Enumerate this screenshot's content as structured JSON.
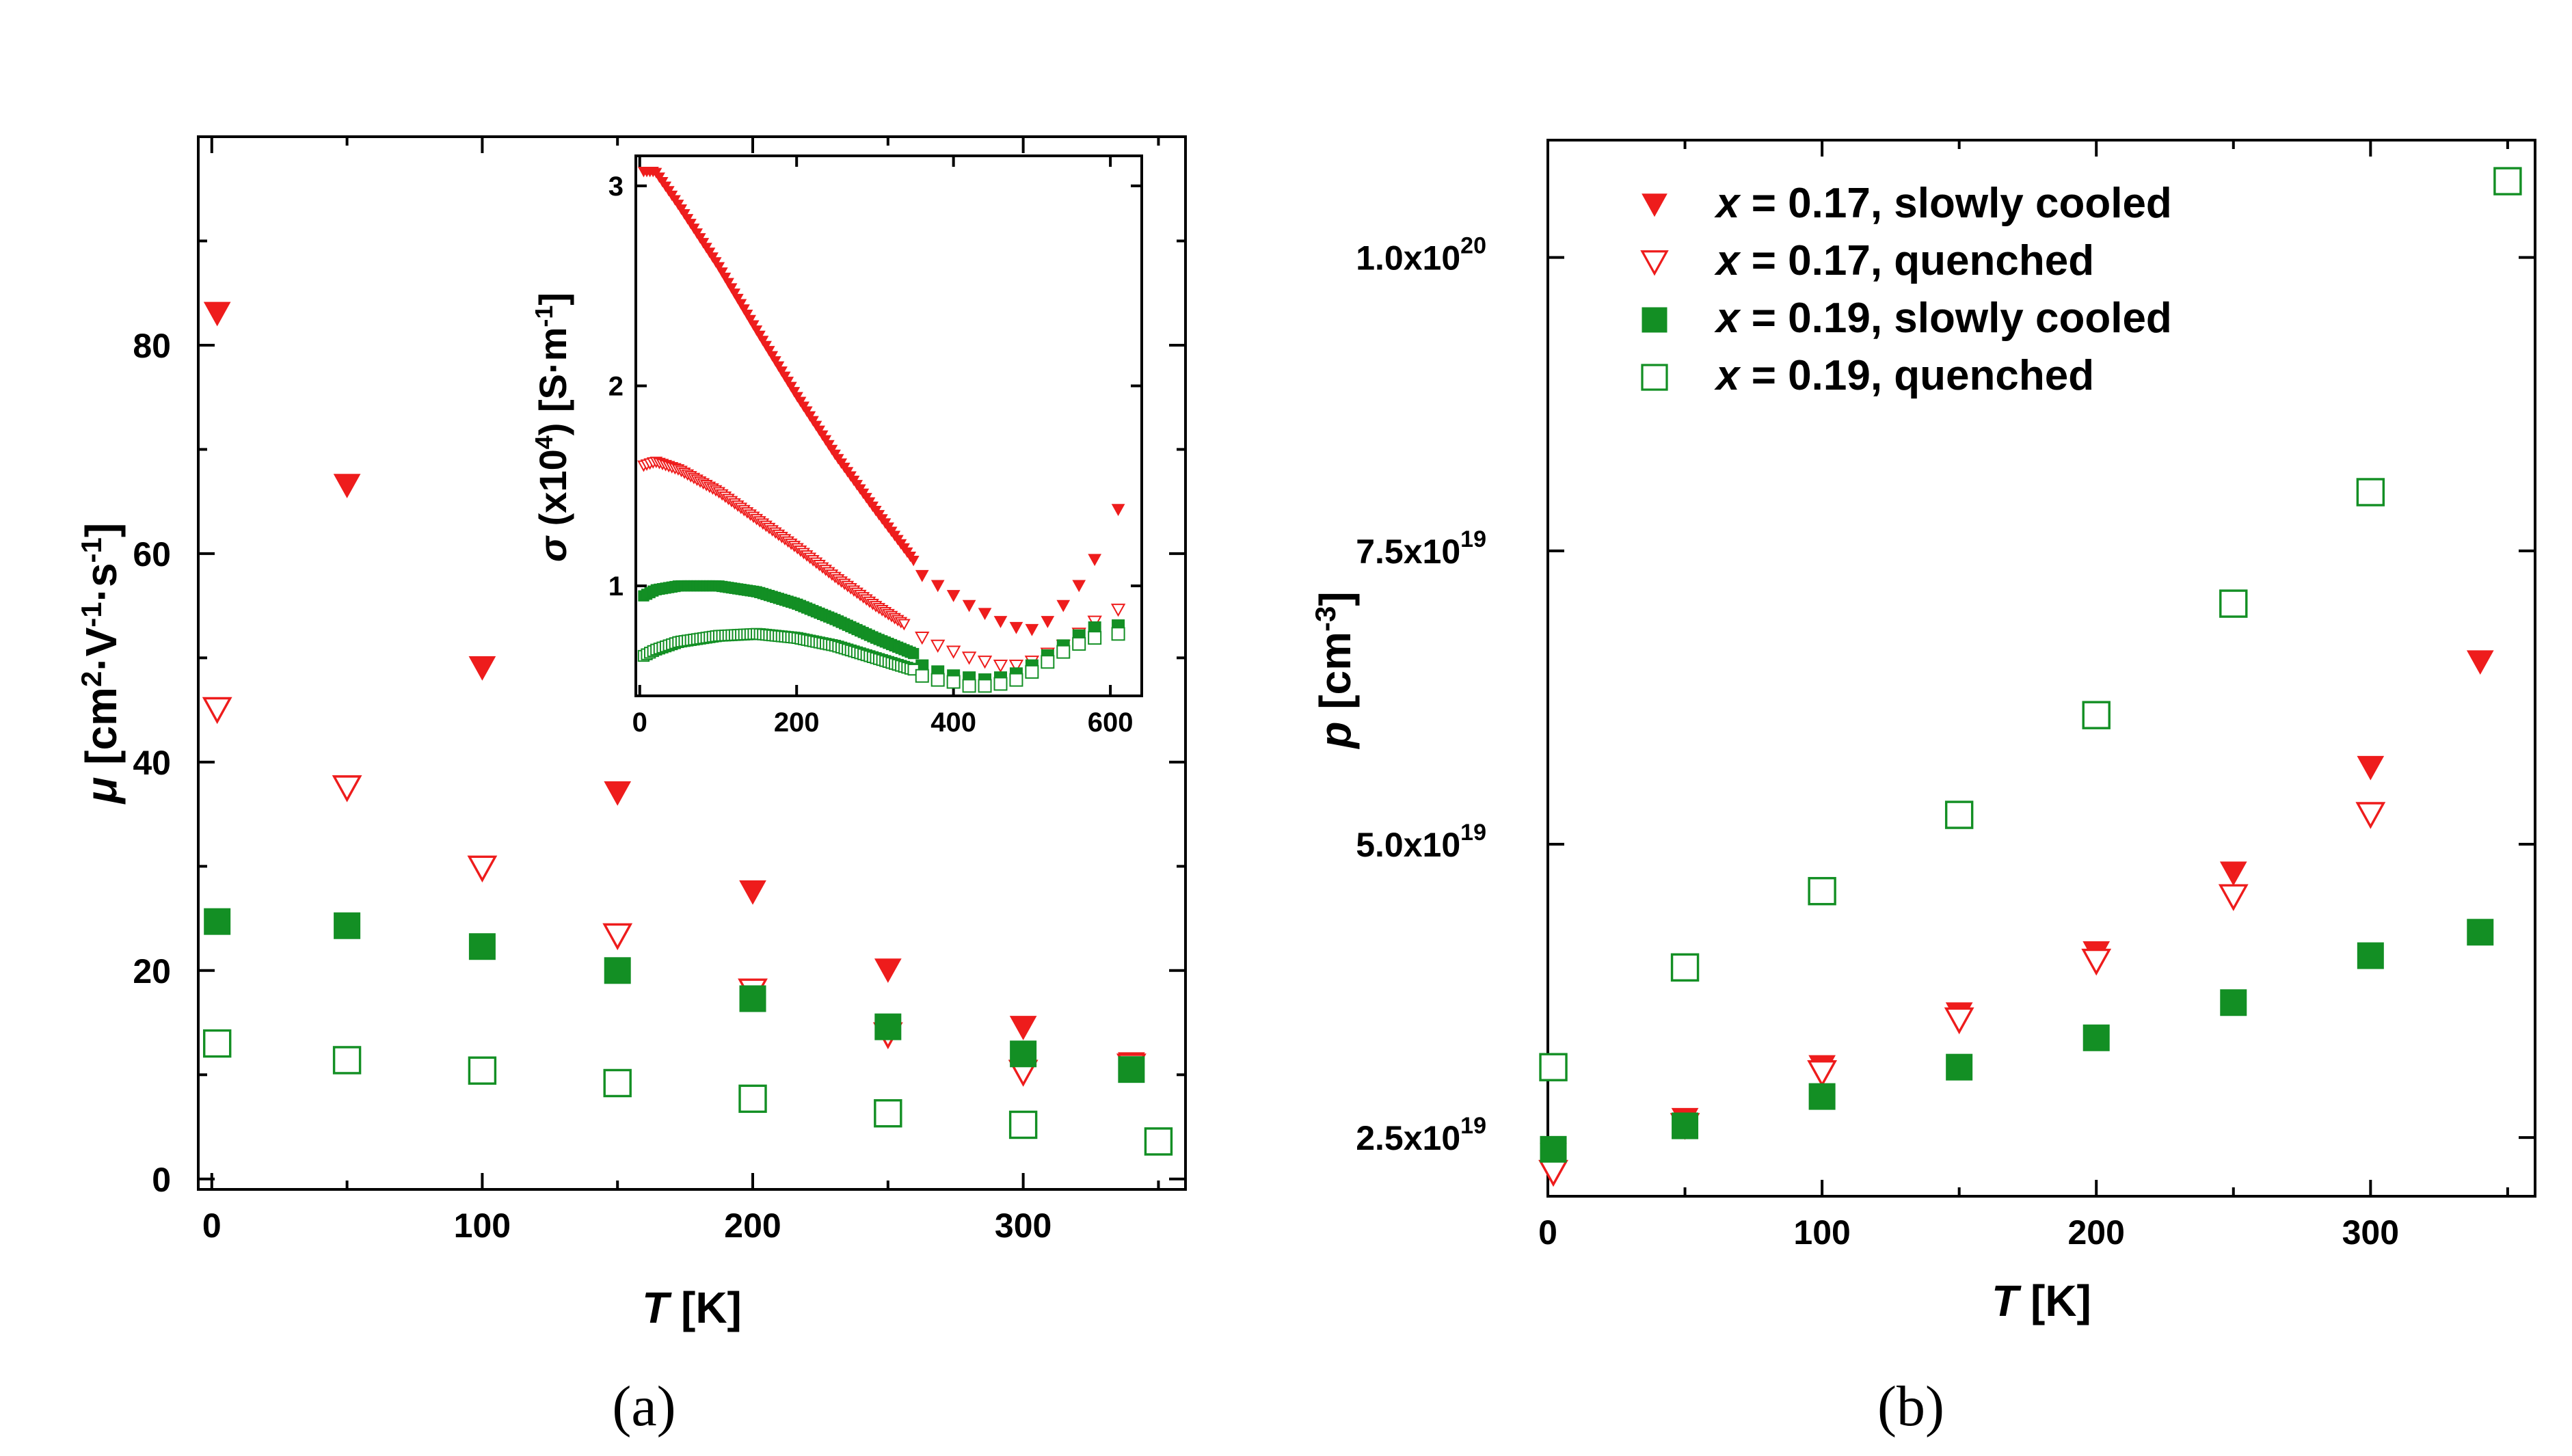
{
  "chart_data": [
    {
      "id": "a-main",
      "type": "scatter",
      "panel_label": "(a)",
      "xlabel": "T [K]",
      "ylabel": "μ [cm²·V⁻¹·s⁻¹]",
      "xlim": [
        -5,
        360
      ],
      "ylim": [
        -1,
        100
      ],
      "xticks": [
        0,
        100,
        200,
        300
      ],
      "xminor": [
        50,
        150,
        250,
        350
      ],
      "yticks": [
        0,
        20,
        40,
        60,
        80
      ],
      "yminor": [
        10,
        30,
        50,
        70,
        90
      ],
      "series": [
        {
          "name": "x = 0.17, slowly cooled",
          "marker": "triangle-down",
          "filled": true,
          "color": "#ee1c1c",
          "x": [
            2,
            50,
            100,
            150,
            200,
            250,
            300,
            340
          ],
          "y": [
            83,
            66.5,
            49,
            37,
            27.5,
            20,
            14.5,
            11
          ]
        },
        {
          "name": "x = 0.17, quenched",
          "marker": "triangle-down",
          "filled": false,
          "color": "#ee1c1c",
          "x": [
            2,
            50,
            100,
            150,
            200,
            250,
            300,
            340
          ],
          "y": [
            45,
            37.5,
            29.8,
            23.3,
            18,
            13.8,
            10.2,
            10.8
          ]
        },
        {
          "name": "x = 0.19, slowly cooled",
          "marker": "square",
          "filled": true,
          "color": "#138f24",
          "x": [
            2,
            50,
            100,
            150,
            200,
            250,
            300,
            340
          ],
          "y": [
            24.7,
            24.3,
            22.3,
            20,
            17.3,
            14.6,
            12,
            10.5
          ]
        },
        {
          "name": "x = 0.19, quenched",
          "marker": "square",
          "filled": false,
          "color": "#138f24",
          "x": [
            2,
            50,
            100,
            150,
            200,
            250,
            300,
            350
          ],
          "y": [
            13,
            11.4,
            10.4,
            9.2,
            7.7,
            6.3,
            5.2,
            3.6
          ]
        }
      ]
    },
    {
      "id": "a-inset",
      "type": "scatter",
      "xlabel": "",
      "ylabel": "σ (x10⁴) [S·m⁻¹]",
      "xlim": [
        -5,
        640
      ],
      "ylim": [
        0.45,
        3.15
      ],
      "xticks": [
        0,
        200,
        400,
        600
      ],
      "yticks": [
        1,
        2,
        3
      ],
      "series": [
        {
          "name": "x = 0.17, slowly cooled (dense)",
          "marker": "triangle-down",
          "filled": true,
          "color": "#ee1c1c",
          "curve": {
            "x": [
              5,
              20,
              50,
              100,
              150,
              200,
              250,
              300,
              350
            ],
            "y": [
              3.07,
              3.07,
              2.9,
              2.6,
              2.27,
              1.95,
              1.65,
              1.38,
              1.12
            ]
          }
        },
        {
          "name": "x = 0.17, slowly cooled (high T)",
          "marker": "triangle-down",
          "filled": true,
          "color": "#ee1c1c",
          "x": [
            360,
            380,
            400,
            420,
            440,
            460,
            480,
            500,
            520,
            540,
            560,
            580,
            610
          ],
          "y": [
            1.05,
            1.0,
            0.95,
            0.9,
            0.86,
            0.82,
            0.79,
            0.78,
            0.82,
            0.9,
            1.0,
            1.13,
            1.38
          ]
        },
        {
          "name": "x = 0.17, quenched (dense)",
          "marker": "triangle-down",
          "filled": false,
          "color": "#ee1c1c",
          "curve": {
            "x": [
              5,
              20,
              50,
              100,
              150,
              200,
              250,
              300,
              340
            ],
            "y": [
              1.6,
              1.62,
              1.58,
              1.47,
              1.33,
              1.19,
              1.04,
              0.9,
              0.8
            ]
          }
        },
        {
          "name": "x = 0.17, quenched (high T)",
          "marker": "triangle-down",
          "filled": false,
          "color": "#ee1c1c",
          "x": [
            360,
            380,
            400,
            420,
            440,
            460,
            480,
            500,
            520,
            540,
            560,
            580,
            610
          ],
          "y": [
            0.74,
            0.7,
            0.67,
            0.64,
            0.62,
            0.6,
            0.6,
            0.62,
            0.66,
            0.7,
            0.76,
            0.82,
            0.88
          ]
        },
        {
          "name": "x = 0.19, slowly cooled (dense)",
          "marker": "square",
          "filled": true,
          "color": "#138f24",
          "curve": {
            "x": [
              5,
              20,
              50,
              100,
              150,
              200,
              250,
              300,
              350
            ],
            "y": [
              0.95,
              0.98,
              1.0,
              1.0,
              0.97,
              0.91,
              0.83,
              0.74,
              0.66
            ]
          }
        },
        {
          "name": "x = 0.19, slowly cooled (high T)",
          "marker": "square",
          "filled": true,
          "color": "#138f24",
          "x": [
            360,
            380,
            400,
            420,
            440,
            460,
            480,
            500,
            520,
            540,
            560,
            580,
            610
          ],
          "y": [
            0.6,
            0.57,
            0.55,
            0.54,
            0.53,
            0.54,
            0.56,
            0.6,
            0.65,
            0.7,
            0.75,
            0.79,
            0.8
          ]
        },
        {
          "name": "x = 0.19, quenched (dense)",
          "marker": "square",
          "filled": false,
          "color": "#138f24",
          "curve": {
            "x": [
              5,
              20,
              50,
              100,
              150,
              200,
              250,
              300,
              350
            ],
            "y": [
              0.65,
              0.68,
              0.72,
              0.75,
              0.76,
              0.74,
              0.7,
              0.64,
              0.58
            ]
          }
        },
        {
          "name": "x = 0.19, quenched (high T)",
          "marker": "square",
          "filled": false,
          "color": "#138f24",
          "x": [
            360,
            380,
            400,
            420,
            440,
            460,
            480,
            500,
            520,
            540,
            560,
            580,
            610
          ],
          "y": [
            0.55,
            0.53,
            0.52,
            0.5,
            0.5,
            0.51,
            0.53,
            0.57,
            0.62,
            0.67,
            0.71,
            0.74,
            0.76
          ]
        }
      ]
    },
    {
      "id": "b-main",
      "type": "scatter",
      "panel_label": "(b)",
      "xlabel": "T [K]",
      "ylabel": "p [cm⁻³]",
      "xlim": [
        0,
        360
      ],
      "ylim": [
        2.0,
        11.0
      ],
      "y_scale_note": "values in units of 1e19 cm^-3",
      "xticks": [
        0,
        100,
        200,
        300
      ],
      "xminor": [
        50,
        150,
        250,
        350
      ],
      "yticks": [
        2.5,
        5.0,
        7.5,
        10.0
      ],
      "yticklabels": [
        {
          "mant": "2.5x10",
          "exp": "19"
        },
        {
          "mant": "5.0x10",
          "exp": "19"
        },
        {
          "mant": "7.5x10",
          "exp": "19"
        },
        {
          "mant": "1.0x10",
          "exp": "20"
        }
      ],
      "legend": [
        "x = 0.17, slowly cooled",
        "x = 0.17, quenched",
        "x = 0.19, slowly cooled",
        "x = 0.19, quenched"
      ],
      "legend_position": "top-left",
      "series": [
        {
          "name": "x = 0.17, slowly cooled",
          "marker": "triangle-down",
          "filled": true,
          "color": "#ee1c1c",
          "x": [
            2,
            50,
            100,
            150,
            200,
            250,
            300,
            340
          ],
          "y": [
            2.35,
            2.65,
            3.1,
            3.55,
            4.07,
            4.75,
            5.65,
            6.55
          ]
        },
        {
          "name": "x = 0.17, quenched",
          "marker": "triangle-down",
          "filled": false,
          "color": "#ee1c1c",
          "x": [
            2,
            50,
            100,
            150,
            200,
            250,
            300
          ],
          "y": [
            2.2,
            2.6,
            3.05,
            3.5,
            4.0,
            4.55,
            5.25
          ]
        },
        {
          "name": "x = 0.19, slowly cooled",
          "marker": "square",
          "filled": true,
          "color": "#138f24",
          "x": [
            2,
            50,
            100,
            150,
            200,
            250,
            300,
            340
          ],
          "y": [
            2.4,
            2.6,
            2.85,
            3.1,
            3.35,
            3.65,
            4.05,
            4.25
          ]
        },
        {
          "name": "x = 0.19, quenched",
          "marker": "square",
          "filled": false,
          "color": "#138f24",
          "x": [
            2,
            50,
            100,
            150,
            200,
            250,
            300,
            350
          ],
          "y": [
            3.1,
            3.95,
            4.6,
            5.25,
            6.1,
            7.05,
            8.0,
            10.65
          ]
        }
      ]
    }
  ]
}
